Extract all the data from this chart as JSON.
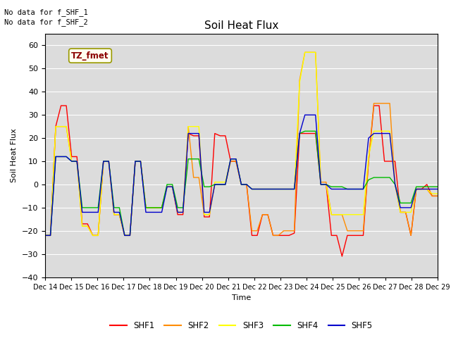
{
  "title": "Soil Heat Flux",
  "ylabel": "Soil Heat Flux",
  "xlabel": "Time",
  "ylim": [
    -40,
    65
  ],
  "yticks": [
    -40,
    -30,
    -20,
    -10,
    0,
    10,
    20,
    30,
    40,
    50,
    60
  ],
  "colors": {
    "SHF1": "#FF0000",
    "SHF2": "#FF8C00",
    "SHF3": "#FFFF00",
    "SHF4": "#00BB00",
    "SHF5": "#0000CC"
  },
  "annotations": [
    "No data for f_SHF_1",
    "No data for f_SHF_2"
  ],
  "legend_label": "TZ_fmet",
  "plot_bg": "#DCDCDC",
  "fig_bg": "#FFFFFF",
  "x_labels": [
    "Dec 14",
    "Dec 15",
    "Dec 16",
    "Dec 17",
    "Dec 18",
    "Dec 19",
    "Dec 20",
    "Dec 21",
    "Dec 22",
    "Dec 23",
    "Dec 24",
    "Dec 25",
    "Dec 26",
    "Dec 27",
    "Dec 28",
    "Dec 29"
  ],
  "n_days": 15,
  "series_SHF1": [
    -22,
    -22,
    25,
    34,
    34,
    12,
    12,
    -17,
    -17,
    -22,
    -22,
    10,
    10,
    -13,
    -13,
    -22,
    -22,
    10,
    10,
    -10,
    -10,
    -10,
    -10,
    -1,
    -1,
    -13,
    -13,
    22,
    21,
    21,
    -14,
    -14,
    22,
    21,
    21,
    10,
    10,
    0,
    0,
    -22,
    -22,
    -13,
    -13,
    -22,
    -22,
    -22,
    -22,
    -21,
    22,
    22,
    22,
    22,
    0,
    0,
    -22,
    -22,
    -31,
    -22,
    -22,
    -22,
    -22,
    10,
    34,
    34,
    10,
    10,
    10,
    -12,
    -12,
    -22,
    -2,
    -2,
    0,
    -5,
    -5
  ],
  "series_SHF2": [
    -22,
    -22,
    25,
    25,
    25,
    10,
    10,
    -18,
    -18,
    -22,
    -22,
    10,
    10,
    -13,
    -13,
    -22,
    -22,
    10,
    10,
    -10,
    -10,
    -10,
    -10,
    -1,
    -1,
    -12,
    -12,
    25,
    3,
    3,
    -13,
    -13,
    0,
    0,
    0,
    10,
    10,
    0,
    0,
    -20,
    -20,
    -13,
    -13,
    -22,
    -22,
    -20,
    -20,
    -20,
    45,
    57,
    57,
    57,
    1,
    1,
    -13,
    -13,
    -13,
    -20,
    -20,
    -20,
    -20,
    10,
    35,
    35,
    35,
    35,
    0,
    -12,
    -12,
    -22,
    -2,
    -2,
    -2,
    -5,
    -5
  ],
  "series_SHF3": [
    -22,
    -22,
    25,
    25,
    25,
    10,
    10,
    -18,
    -18,
    -22,
    -22,
    10,
    10,
    -13,
    -13,
    -22,
    -22,
    10,
    10,
    -10,
    -10,
    -10,
    -10,
    -1,
    -1,
    -12,
    -12,
    25,
    25,
    25,
    -13,
    -13,
    1,
    1,
    1,
    11,
    11,
    0,
    0,
    -2,
    -2,
    -2,
    -2,
    -2,
    -2,
    -2,
    -2,
    -2,
    44,
    57,
    57,
    57,
    0,
    0,
    -13,
    -13,
    -13,
    -13,
    -13,
    -13,
    -13,
    12,
    23,
    23,
    23,
    23,
    0,
    -12,
    -12,
    -12,
    -2,
    -2,
    -2,
    -4,
    -4
  ],
  "series_SHF4": [
    -22,
    -22,
    12,
    12,
    12,
    10,
    10,
    -10,
    -10,
    -10,
    -10,
    10,
    10,
    -10,
    -10,
    -22,
    -22,
    10,
    10,
    -10,
    -10,
    -10,
    -10,
    0,
    0,
    -10,
    -10,
    11,
    11,
    11,
    -1,
    -1,
    0,
    0,
    0,
    11,
    11,
    0,
    0,
    -2,
    -2,
    -2,
    -2,
    -2,
    -2,
    -2,
    -2,
    -2,
    22,
    23,
    23,
    23,
    0,
    0,
    -1,
    -1,
    -1,
    -2,
    -2,
    -2,
    -2,
    2,
    3,
    3,
    3,
    3,
    0,
    -8,
    -8,
    -8,
    -1,
    -1,
    -1,
    -1,
    -1
  ],
  "series_SHF5": [
    -22,
    -22,
    12,
    12,
    12,
    10,
    10,
    -12,
    -12,
    -12,
    -12,
    10,
    10,
    -12,
    -12,
    -22,
    -22,
    10,
    10,
    -12,
    -12,
    -12,
    -12,
    -1,
    -1,
    -12,
    -12,
    22,
    22,
    22,
    -12,
    -12,
    0,
    0,
    0,
    11,
    11,
    0,
    0,
    -2,
    -2,
    -2,
    -2,
    -2,
    -2,
    -2,
    -2,
    -2,
    22,
    30,
    30,
    30,
    0,
    0,
    -2,
    -2,
    -2,
    -2,
    -2,
    -2,
    -2,
    20,
    22,
    22,
    22,
    22,
    0,
    -10,
    -10,
    -10,
    -2,
    -2,
    -2,
    -2,
    -2
  ]
}
